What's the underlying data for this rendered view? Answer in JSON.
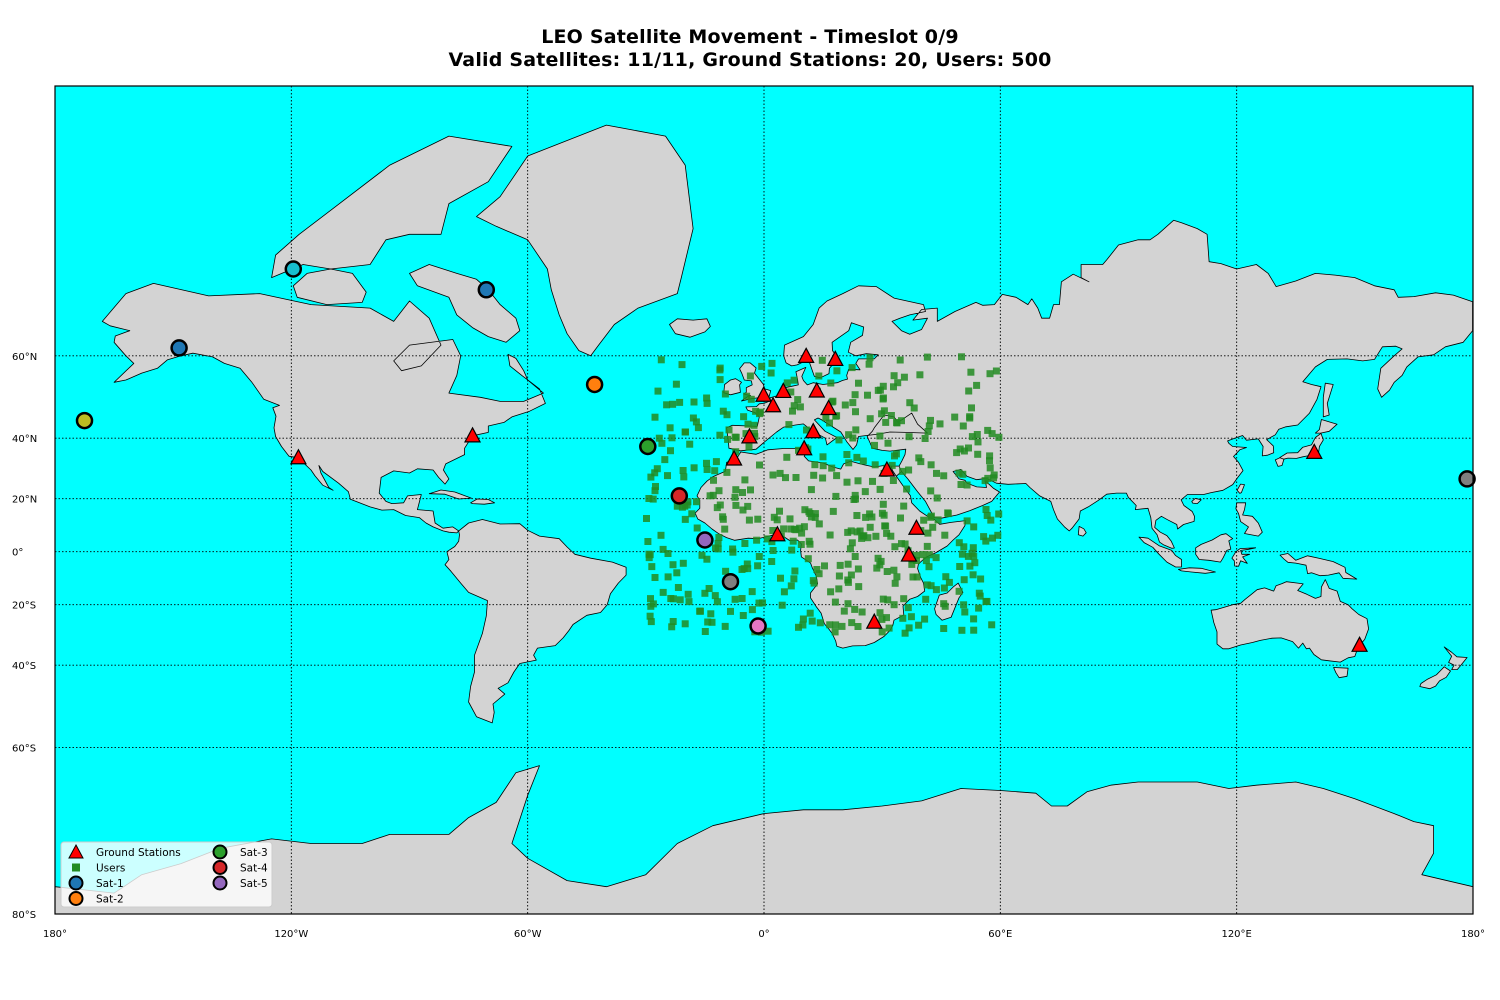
{
  "title_line1": "LEO Satellite Movement - Timeslot 0/9",
  "title_line2": "Valid Satellites: 11/11, Ground Stations: 20, Users: 500",
  "colors": {
    "ocean": "#00ffff",
    "land": "#d3d3d3",
    "ground_station": "#ff0000",
    "user": "#228b22"
  },
  "map": {
    "projection": "mercator",
    "lon_range": [
      -180,
      180
    ],
    "lat_range": [
      -80,
      85
    ],
    "lat_ticks": [
      {
        "lat": 60,
        "label": "60°N"
      },
      {
        "lat": 40,
        "label": "40°N"
      },
      {
        "lat": 20,
        "label": "20°N"
      },
      {
        "lat": 0,
        "label": "0°"
      },
      {
        "lat": -20,
        "label": "20°S"
      },
      {
        "lat": -40,
        "label": "40°S"
      },
      {
        "lat": -60,
        "label": "60°S"
      },
      {
        "lat": -80,
        "label": "80°S"
      }
    ],
    "lon_ticks": [
      {
        "lon": -180,
        "label": "180°"
      },
      {
        "lon": -120,
        "label": "120°W"
      },
      {
        "lon": -60,
        "label": "60°W"
      },
      {
        "lon": 0,
        "label": "0°"
      },
      {
        "lon": 60,
        "label": "60°E"
      },
      {
        "lon": 120,
        "label": "120°E"
      },
      {
        "lon": 180,
        "label": "180°"
      }
    ]
  },
  "legend": {
    "placement": "lower-left",
    "items": [
      {
        "label": "Ground Stations",
        "marker": "triangle",
        "color": "#ff0000"
      },
      {
        "label": "Users",
        "marker": "square",
        "color": "#228b22"
      },
      {
        "label": "Sat-1",
        "marker": "circle",
        "color": "#1f77b4"
      },
      {
        "label": "Sat-2",
        "marker": "circle",
        "color": "#ff7f0e"
      },
      {
        "label": "Sat-3",
        "marker": "circle",
        "color": "#2ca02c"
      },
      {
        "label": "Sat-4",
        "marker": "circle",
        "color": "#d62728"
      },
      {
        "label": "Sat-5",
        "marker": "circle",
        "color": "#9467bd"
      }
    ]
  },
  "ground_stations": [
    [
      -118.2,
      34.0
    ],
    [
      -74.0,
      40.7
    ],
    [
      -3.7,
      40.4
    ],
    [
      -0.1,
      51.5
    ],
    [
      2.3,
      48.9
    ],
    [
      4.9,
      52.4
    ],
    [
      13.4,
      52.5
    ],
    [
      10.7,
      59.9
    ],
    [
      18.1,
      59.3
    ],
    [
      16.4,
      48.2
    ],
    [
      12.5,
      41.9
    ],
    [
      10.2,
      36.8
    ],
    [
      -7.6,
      33.6
    ],
    [
      31.2,
      30.0
    ],
    [
      3.4,
      6.5
    ],
    [
      36.8,
      -1.3
    ],
    [
      38.7,
      9.0
    ],
    [
      28.0,
      -26.2
    ],
    [
      139.7,
      35.7
    ],
    [
      151.2,
      -33.9
    ]
  ],
  "satellites": [
    {
      "lon": -148.5,
      "lat": 61.5,
      "color": "#1f77b4"
    },
    {
      "lon": -119.5,
      "lat": 73.0,
      "color": "#17becf"
    },
    {
      "lon": -70.5,
      "lat": 70.5,
      "color": "#1f77b4"
    },
    {
      "lon": -172.5,
      "lat": 45.0,
      "color": "#bcbd22"
    },
    {
      "lon": -43.0,
      "lat": 54.0,
      "color": "#ff7f0e"
    },
    {
      "lon": -29.5,
      "lat": 37.5,
      "color": "#2ca02c"
    },
    {
      "lon": -21.5,
      "lat": 21.0,
      "color": "#d62728"
    },
    {
      "lon": -15.0,
      "lat": 4.5,
      "color": "#9467bd"
    },
    {
      "lon": -8.5,
      "lat": -11.5,
      "color": "#7f7f7f"
    },
    {
      "lon": -1.5,
      "lat": -27.5,
      "color": "#e377c2"
    },
    {
      "lon": 178.5,
      "lat": 27.0,
      "color": "#7f7f7f"
    }
  ],
  "users": {
    "count": 500,
    "lon_range": [
      -30,
      60
    ],
    "lat_range": [
      -30,
      60
    ]
  }
}
